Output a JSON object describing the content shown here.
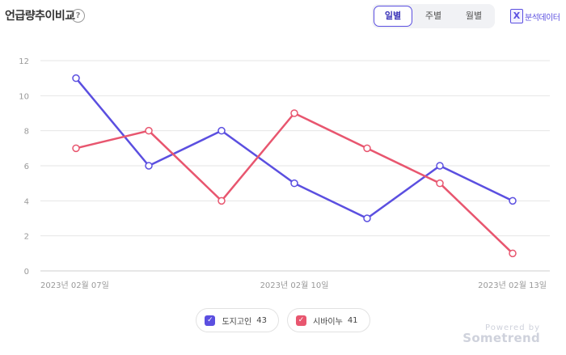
{
  "header": {
    "title": "언급량추이비교",
    "help_symbol": "?",
    "tabs": [
      {
        "label": "일별",
        "active": true
      },
      {
        "label": "주별",
        "active": false
      },
      {
        "label": "월별",
        "active": false
      }
    ],
    "export_icon_letter": "X",
    "export_label": "분석데이터"
  },
  "chart_data": {
    "type": "line",
    "x": [
      "2023-02-07",
      "2023-02-08",
      "2023-02-09",
      "2023-02-10",
      "2023-02-11",
      "2023-02-12",
      "2023-02-13"
    ],
    "x_tick_labels": [
      "2023년 02월 07일",
      "2023년 02월 10일",
      "2023년 02월 13일"
    ],
    "y_ticks": [
      "0",
      "2",
      "4",
      "6",
      "8",
      "10",
      "12"
    ],
    "ylim": [
      0,
      12
    ],
    "grid": "horizontal",
    "legend_placement": "bottom-center",
    "series": [
      {
        "name": "도지고인",
        "total": "43",
        "color": "#5b4fe0",
        "values": [
          11,
          6,
          8,
          5,
          3,
          6,
          4
        ]
      },
      {
        "name": "시바이누",
        "total": "41",
        "color": "#e8566f",
        "values": [
          7,
          8,
          4,
          9,
          7,
          5,
          1
        ]
      }
    ]
  },
  "branding": {
    "powered": "Powered by",
    "name": "Sometrend"
  }
}
